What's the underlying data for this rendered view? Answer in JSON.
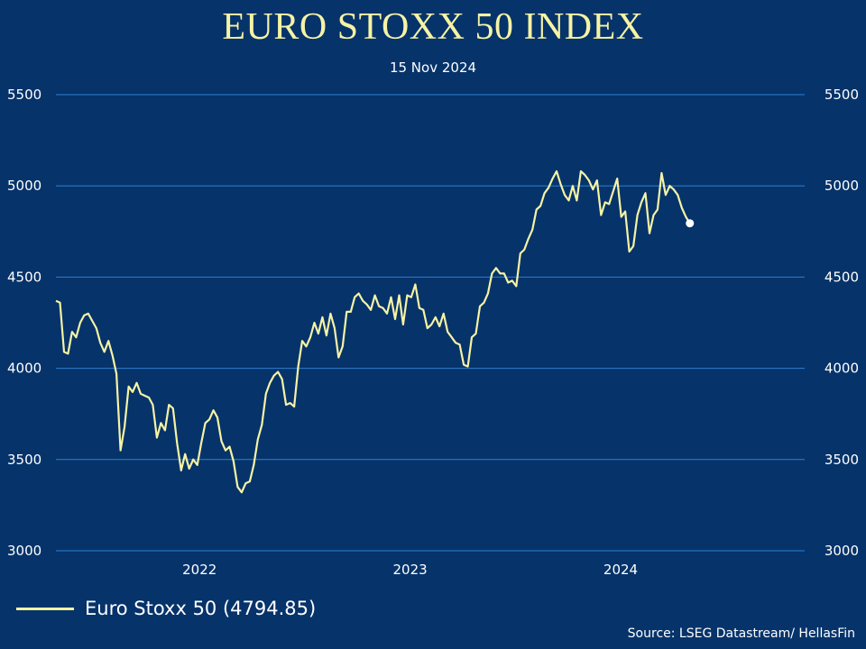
{
  "chart_data": {
    "type": "line",
    "title": "EURO STOXX 50 INDEX",
    "subtitle": "15 Nov 2024",
    "ylim": [
      3000,
      5500
    ],
    "y_ticks": [
      "3000",
      "3500",
      "4000",
      "4500",
      "5000",
      "5500"
    ],
    "xlim": [
      "2021-04-27",
      "2024-11-15"
    ],
    "x_ticks": [
      {
        "label": "2022",
        "date": "2022-01-01"
      },
      {
        "label": "2023",
        "date": "2023-01-01"
      },
      {
        "label": "2024",
        "date": "2024-01-01"
      }
    ],
    "grid": true,
    "legend_position": "bottom-left",
    "series": [
      {
        "name": "Euro Stoxx 50 (4794.85)",
        "color": "#f6f3a4",
        "points": [
          [
            "2021-04-27",
            4370
          ],
          [
            "2021-05-04",
            4360
          ],
          [
            "2021-05-11",
            4090
          ],
          [
            "2021-05-18",
            4080
          ],
          [
            "2021-05-25",
            4200
          ],
          [
            "2021-06-01",
            4170
          ],
          [
            "2021-06-08",
            4250
          ],
          [
            "2021-06-15",
            4290
          ],
          [
            "2021-06-22",
            4300
          ],
          [
            "2021-06-29",
            4260
          ],
          [
            "2021-07-06",
            4220
          ],
          [
            "2021-07-13",
            4140
          ],
          [
            "2021-07-20",
            4090
          ],
          [
            "2021-07-27",
            4150
          ],
          [
            "2021-08-03",
            4070
          ],
          [
            "2021-08-10",
            3970
          ],
          [
            "2021-08-17",
            3550
          ],
          [
            "2021-08-24",
            3680
          ],
          [
            "2021-08-31",
            3900
          ],
          [
            "2021-09-07",
            3870
          ],
          [
            "2021-09-14",
            3920
          ],
          [
            "2021-09-21",
            3860
          ],
          [
            "2021-09-28",
            3850
          ],
          [
            "2021-10-05",
            3840
          ],
          [
            "2021-10-12",
            3800
          ],
          [
            "2021-10-19",
            3620
          ],
          [
            "2021-10-26",
            3700
          ],
          [
            "2021-11-02",
            3660
          ],
          [
            "2021-11-09",
            3800
          ],
          [
            "2021-11-16",
            3780
          ],
          [
            "2021-11-23",
            3590
          ],
          [
            "2021-11-30",
            3440
          ],
          [
            "2021-12-07",
            3530
          ],
          [
            "2021-12-14",
            3450
          ],
          [
            "2021-12-21",
            3500
          ],
          [
            "2021-12-28",
            3470
          ],
          [
            "2022-01-04",
            3590
          ],
          [
            "2022-01-11",
            3700
          ],
          [
            "2022-01-18",
            3720
          ],
          [
            "2022-01-25",
            3770
          ],
          [
            "2022-02-01",
            3730
          ],
          [
            "2022-02-08",
            3600
          ],
          [
            "2022-02-15",
            3550
          ],
          [
            "2022-02-22",
            3570
          ],
          [
            "2022-03-01",
            3490
          ],
          [
            "2022-03-08",
            3350
          ],
          [
            "2022-03-15",
            3320
          ],
          [
            "2022-03-22",
            3370
          ],
          [
            "2022-03-29",
            3380
          ],
          [
            "2022-04-05",
            3470
          ],
          [
            "2022-04-12",
            3610
          ],
          [
            "2022-04-19",
            3690
          ],
          [
            "2022-04-26",
            3860
          ],
          [
            "2022-05-03",
            3920
          ],
          [
            "2022-05-10",
            3960
          ],
          [
            "2022-05-17",
            3980
          ],
          [
            "2022-05-24",
            3940
          ],
          [
            "2022-05-31",
            3800
          ],
          [
            "2022-06-07",
            3810
          ],
          [
            "2022-06-14",
            3790
          ],
          [
            "2022-06-21",
            4010
          ],
          [
            "2022-06-28",
            4150
          ],
          [
            "2022-07-05",
            4120
          ],
          [
            "2022-07-12",
            4170
          ],
          [
            "2022-07-19",
            4250
          ],
          [
            "2022-07-26",
            4190
          ],
          [
            "2022-08-02",
            4280
          ],
          [
            "2022-08-09",
            4180
          ],
          [
            "2022-08-16",
            4300
          ],
          [
            "2022-08-23",
            4220
          ],
          [
            "2022-08-30",
            4060
          ],
          [
            "2022-09-06",
            4120
          ],
          [
            "2022-09-13",
            4310
          ],
          [
            "2022-09-20",
            4310
          ],
          [
            "2022-09-27",
            4390
          ],
          [
            "2022-10-04",
            4410
          ],
          [
            "2022-10-11",
            4370
          ],
          [
            "2022-10-18",
            4350
          ],
          [
            "2022-10-25",
            4320
          ],
          [
            "2022-11-01",
            4400
          ],
          [
            "2022-11-08",
            4340
          ],
          [
            "2022-11-15",
            4330
          ],
          [
            "2022-11-22",
            4300
          ],
          [
            "2022-11-29",
            4390
          ],
          [
            "2022-12-06",
            4270
          ],
          [
            "2022-12-13",
            4400
          ],
          [
            "2022-12-20",
            4240
          ],
          [
            "2022-12-27",
            4400
          ],
          [
            "2023-01-03",
            4390
          ],
          [
            "2023-01-10",
            4460
          ],
          [
            "2023-01-17",
            4330
          ],
          [
            "2023-01-24",
            4320
          ],
          [
            "2023-01-31",
            4220
          ],
          [
            "2023-02-07",
            4240
          ],
          [
            "2023-02-14",
            4280
          ],
          [
            "2023-02-21",
            4230
          ],
          [
            "2023-02-28",
            4300
          ],
          [
            "2023-03-07",
            4200
          ],
          [
            "2023-03-14",
            4170
          ],
          [
            "2023-03-21",
            4140
          ],
          [
            "2023-03-28",
            4130
          ],
          [
            "2023-04-04",
            4020
          ],
          [
            "2023-04-11",
            4010
          ],
          [
            "2023-04-18",
            4170
          ],
          [
            "2023-04-25",
            4190
          ],
          [
            "2023-05-02",
            4340
          ],
          [
            "2023-05-09",
            4360
          ],
          [
            "2023-05-16",
            4410
          ],
          [
            "2023-05-23",
            4520
          ],
          [
            "2023-05-30",
            4550
          ],
          [
            "2023-06-06",
            4520
          ],
          [
            "2023-06-13",
            4520
          ],
          [
            "2023-06-20",
            4470
          ],
          [
            "2023-06-27",
            4480
          ],
          [
            "2023-07-04",
            4450
          ],
          [
            "2023-07-11",
            4630
          ],
          [
            "2023-07-18",
            4650
          ],
          [
            "2023-07-25",
            4710
          ],
          [
            "2023-08-01",
            4760
          ],
          [
            "2023-08-08",
            4870
          ],
          [
            "2023-08-15",
            4890
          ],
          [
            "2023-08-22",
            4960
          ],
          [
            "2023-08-29",
            4990
          ],
          [
            "2023-09-05",
            5040
          ],
          [
            "2023-09-12",
            5080
          ],
          [
            "2023-09-19",
            5010
          ],
          [
            "2023-09-26",
            4950
          ],
          [
            "2023-10-03",
            4920
          ],
          [
            "2023-10-10",
            5000
          ],
          [
            "2023-10-17",
            4920
          ],
          [
            "2023-10-24",
            5080
          ],
          [
            "2023-10-31",
            5060
          ],
          [
            "2023-11-07",
            5030
          ],
          [
            "2023-11-14",
            4980
          ],
          [
            "2023-11-21",
            5030
          ],
          [
            "2023-11-28",
            4840
          ],
          [
            "2023-12-05",
            4910
          ],
          [
            "2023-12-12",
            4900
          ],
          [
            "2023-12-19",
            4970
          ],
          [
            "2023-12-26",
            5040
          ],
          [
            "2024-01-02",
            4830
          ],
          [
            "2024-01-09",
            4860
          ],
          [
            "2024-01-16",
            4640
          ],
          [
            "2024-01-23",
            4670
          ],
          [
            "2024-01-30",
            4840
          ],
          [
            "2024-02-06",
            4910
          ],
          [
            "2024-02-13",
            4960
          ],
          [
            "2024-02-20",
            4740
          ],
          [
            "2024-02-27",
            4840
          ],
          [
            "2024-03-05",
            4870
          ],
          [
            "2024-03-12",
            5070
          ],
          [
            "2024-03-19",
            4950
          ],
          [
            "2024-03-26",
            5000
          ],
          [
            "2024-04-02",
            4980
          ],
          [
            "2024-04-09",
            4950
          ],
          [
            "2024-04-16",
            4880
          ],
          [
            "2024-04-23",
            4830
          ],
          [
            "2024-04-30",
            4795
          ]
        ]
      }
    ],
    "end_marker": {
      "date": "2024-04-30",
      "value": 4794.85
    },
    "legend_label": "Euro Stoxx 50 (4794.85)",
    "source": "Source: LSEG Datastream/ HellasFin",
    "colors": {
      "background": "#06336a",
      "grid": "#2e7fd0",
      "line": "#f6f3a4",
      "title": "#f6f3a4",
      "text": "#ffffff"
    }
  }
}
